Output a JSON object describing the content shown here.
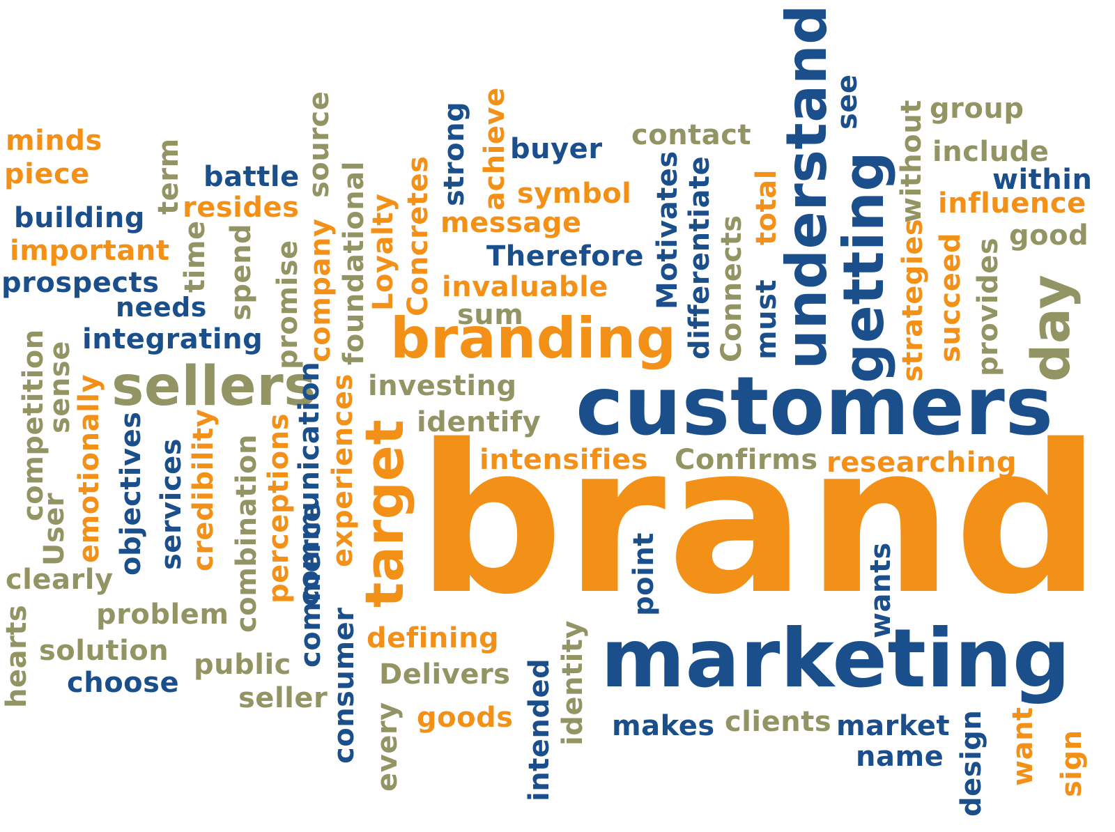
{
  "colors": {
    "orange": "#f39017",
    "blue": "#1a4f8c",
    "olive": "#939463",
    "background": "#ffffff"
  },
  "words": {
    "minds": "minds",
    "piece": "piece",
    "building": "building",
    "important": "important",
    "prospects": "prospects",
    "needs": "needs",
    "integrating": "integrating",
    "battle": "battle",
    "resides": "resides",
    "term": "term",
    "time": "time",
    "spend": "spend",
    "source": "source",
    "company": "company",
    "promise": "promise",
    "foundational": "foundational",
    "sellers": "sellers",
    "competition": "competition",
    "sense": "sense",
    "emotionally": "emotionally",
    "objectives": "objectives",
    "services": "services",
    "credibility": "credibility",
    "combination": "combination",
    "perceptions": "perceptions",
    "communication": "communication",
    "experiences": "experiences",
    "user": "User",
    "clearly": "clearly",
    "hearts": "hearts",
    "problem": "problem",
    "solution": "solution",
    "choose": "choose",
    "public": "public",
    "seller": "seller",
    "commerce": "commerce",
    "consumer": "consumer",
    "every": "every",
    "target": "target",
    "loyalty": "Loyalty",
    "concretes": "Concretes",
    "strong": "strong",
    "achieve": "achieve",
    "buyer": "buyer",
    "symbol": "symbol",
    "message": "message",
    "therefore": "Therefore",
    "invaluable": "invaluable",
    "sum": "sum",
    "branding": "branding",
    "investing": "investing",
    "identify": "identify",
    "intensifies": "intensifies",
    "defining": "defining",
    "delivers": "Delivers",
    "goods": "goods",
    "contact": "contact",
    "motivates": "Motivates",
    "differentiate": "differentiate",
    "connects": "Connects",
    "must": "must",
    "total": "total",
    "understand": "understand",
    "getting": "getting",
    "see": "see",
    "without": "without",
    "strategies": "strategies",
    "succeed": "succeed",
    "provides": "provides",
    "group": "group",
    "include": "include",
    "within": "within",
    "influence": "influence",
    "good": "good",
    "day": "day",
    "customers": "customers",
    "confirms": "Confirms",
    "researching": "researching",
    "brand": "brand",
    "point": "point",
    "wants": "wants",
    "marketing": "marketing",
    "intended": "intended",
    "identity": "identity",
    "makes": "makes",
    "clients": "clients",
    "market": "market",
    "name": "name",
    "design": "design",
    "want": "want",
    "sign": "sign"
  }
}
